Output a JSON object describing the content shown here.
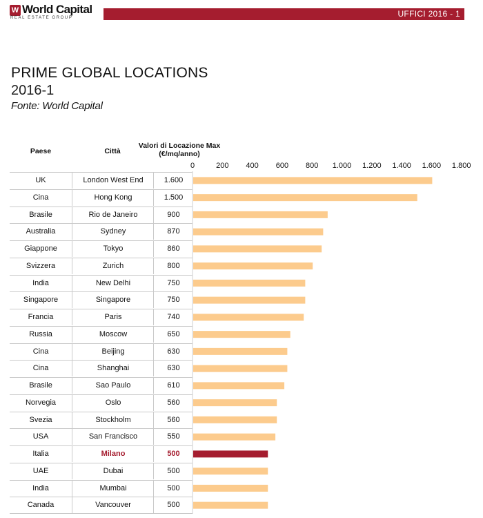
{
  "header": {
    "logo_name": "World Capital",
    "logo_mark": "W",
    "logo_sub": "REAL ESTATE GROUP",
    "tag": "UFFICI 2016 - 1",
    "accent": "#a51d2f"
  },
  "title": "PRIME GLOBAL LOCATIONS",
  "subtitle": "2016-1",
  "source": "Fonte: World Capital",
  "columns": {
    "country": "Paese",
    "city": "Città",
    "value_line1": "Valori di Locazione Max",
    "value_line2": "(€/mq/anno)"
  },
  "colors": {
    "bar": "#fccb8d",
    "highlight": "#a51d2f"
  },
  "rows": [
    {
      "country": "UK",
      "city": "London West End",
      "value": "1.600"
    },
    {
      "country": "Cina",
      "city": "Hong Kong",
      "value": "1.500"
    },
    {
      "country": "Brasile",
      "city": "Rio de Janeiro",
      "value": "900"
    },
    {
      "country": "Australia",
      "city": "Sydney",
      "value": "870"
    },
    {
      "country": "Giappone",
      "city": "Tokyo",
      "value": "860"
    },
    {
      "country": "Svizzera",
      "city": "Zurich",
      "value": "800"
    },
    {
      "country": "India",
      "city": "New Delhi",
      "value": "750"
    },
    {
      "country": "Singapore",
      "city": "Singapore",
      "value": "750"
    },
    {
      "country": "Francia",
      "city": "Paris",
      "value": "740"
    },
    {
      "country": "Russia",
      "city": "Moscow",
      "value": "650"
    },
    {
      "country": "Cina",
      "city": "Beijing",
      "value": "630"
    },
    {
      "country": "Cina",
      "city": "Shanghai",
      "value": "630"
    },
    {
      "country": "Brasile",
      "city": "Sao Paulo",
      "value": "610"
    },
    {
      "country": "Norvegia",
      "city": "Oslo",
      "value": "560"
    },
    {
      "country": "Svezia",
      "city": "Stockholm",
      "value": "560"
    },
    {
      "country": "USA",
      "city": "San Francisco",
      "value": "550"
    },
    {
      "country": "Italia",
      "city": "Milano",
      "value": "500",
      "highlight": true
    },
    {
      "country": "UAE",
      "city": "Dubai",
      "value": "500"
    },
    {
      "country": "India",
      "city": "Mumbai",
      "value": "500"
    },
    {
      "country": "Canada",
      "city": "Vancouver",
      "value": "500"
    }
  ],
  "chart_data": {
    "type": "bar",
    "orientation": "horizontal",
    "categories": [
      "London West End",
      "Hong Kong",
      "Rio de Janeiro",
      "Sydney",
      "Tokyo",
      "Zurich",
      "New Delhi",
      "Singapore",
      "Paris",
      "Moscow",
      "Beijing",
      "Shanghai",
      "Sao Paulo",
      "Oslo",
      "Stockholm",
      "San Francisco",
      "Milano",
      "Dubai",
      "Mumbai",
      "Vancouver"
    ],
    "values": [
      1600,
      1500,
      900,
      870,
      860,
      800,
      750,
      750,
      740,
      650,
      630,
      630,
      610,
      560,
      560,
      550,
      500,
      500,
      500,
      500
    ],
    "highlight_category": "Milano",
    "xlim": [
      0,
      1800
    ],
    "ticks": [
      0,
      200,
      400,
      600,
      800,
      1000,
      1200,
      1400,
      1600,
      1800
    ],
    "tick_labels": [
      "0",
      "200",
      "400",
      "600",
      "800",
      "1.000",
      "1.200",
      "1.400",
      "1.600",
      "1.800"
    ],
    "grid": false
  }
}
